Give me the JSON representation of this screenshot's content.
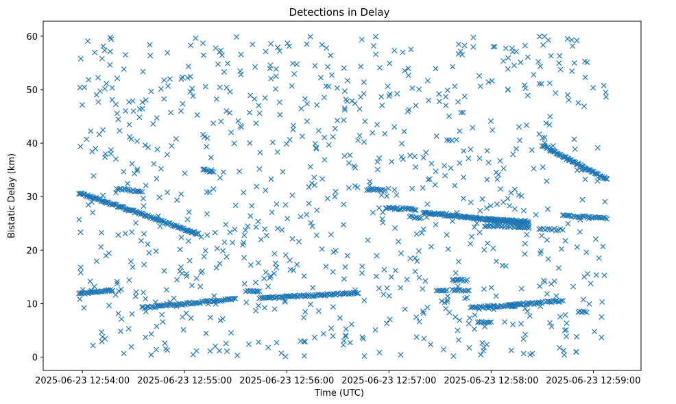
{
  "chart_data": {
    "type": "scatter",
    "title": "Detections in Delay",
    "xlabel": "Time (UTC)",
    "ylabel": "Bistatic Delay (km)",
    "marker": "x",
    "color": "#1f77b4",
    "x_unit": "seconds after 2025-06-23 12:54:00",
    "xlim": [
      -23,
      328
    ],
    "ylim": [
      -2.5,
      62.8
    ],
    "x_ticks": [
      {
        "value": 0,
        "label": "2025-06-23 12:54:00"
      },
      {
        "value": 60,
        "label": "2025-06-23 12:55:00"
      },
      {
        "value": 120,
        "label": "2025-06-23 12:56:00"
      },
      {
        "value": 180,
        "label": "2025-06-23 12:57:00"
      },
      {
        "value": 240,
        "label": "2025-06-23 12:58:00"
      },
      {
        "value": 300,
        "label": "2025-06-23 12:59:00"
      }
    ],
    "y_ticks": [
      {
        "value": 0,
        "label": "0"
      },
      {
        "value": 10,
        "label": "10"
      },
      {
        "value": 20,
        "label": "20"
      },
      {
        "value": 30,
        "label": "30"
      },
      {
        "value": 40,
        "label": "40"
      },
      {
        "value": 50,
        "label": "50"
      },
      {
        "value": 60,
        "label": "60"
      }
    ],
    "tracks": [
      {
        "x0": -2,
        "y0": 30.7,
        "x1": 37,
        "y1": 26.5,
        "n": 70
      },
      {
        "x0": 37,
        "y0": 26.5,
        "x1": 68,
        "y1": 23.0,
        "n": 55
      },
      {
        "x0": -2,
        "y0": 11.9,
        "x1": 18,
        "y1": 12.5,
        "n": 30
      },
      {
        "x0": 20,
        "y0": 31.4,
        "x1": 35,
        "y1": 31.0,
        "n": 18
      },
      {
        "x0": 35,
        "y0": 9.2,
        "x1": 90,
        "y1": 10.9,
        "n": 70
      },
      {
        "x0": 71,
        "y0": 35.0,
        "x1": 77,
        "y1": 34.6,
        "n": 8
      },
      {
        "x0": 96,
        "y0": 12.4,
        "x1": 104,
        "y1": 12.3,
        "n": 10
      },
      {
        "x0": 104,
        "y0": 11.0,
        "x1": 162,
        "y1": 12.0,
        "n": 80
      },
      {
        "x0": 167,
        "y0": 31.4,
        "x1": 178,
        "y1": 31.2,
        "n": 14
      },
      {
        "x0": 178,
        "y0": 27.9,
        "x1": 196,
        "y1": 27.6,
        "n": 24
      },
      {
        "x0": 192,
        "y0": 26.3,
        "x1": 199,
        "y1": 25.9,
        "n": 8
      },
      {
        "x0": 200,
        "y0": 27.0,
        "x1": 262,
        "y1": 25.0,
        "n": 110
      },
      {
        "x0": 236,
        "y0": 24.6,
        "x1": 262,
        "y1": 24.3,
        "n": 30
      },
      {
        "x0": 237,
        "y0": 25.7,
        "x1": 262,
        "y1": 25.4,
        "n": 30
      },
      {
        "x0": 217,
        "y0": 14.4,
        "x1": 226,
        "y1": 14.4,
        "n": 10
      },
      {
        "x0": 208,
        "y0": 12.4,
        "x1": 214,
        "y1": 12.5,
        "n": 8
      },
      {
        "x0": 217,
        "y0": 12.5,
        "x1": 227,
        "y1": 12.4,
        "n": 10
      },
      {
        "x0": 228,
        "y0": 9.3,
        "x1": 254,
        "y1": 9.6,
        "n": 35
      },
      {
        "x0": 232,
        "y0": 6.5,
        "x1": 240,
        "y1": 6.6,
        "n": 10
      },
      {
        "x0": 250,
        "y0": 9.7,
        "x1": 270,
        "y1": 10.2,
        "n": 30
      },
      {
        "x0": 272,
        "y0": 10.4,
        "x1": 282,
        "y1": 10.4,
        "n": 12
      },
      {
        "x0": 291,
        "y0": 8.5,
        "x1": 296,
        "y1": 8.4,
        "n": 6
      },
      {
        "x0": 270,
        "y0": 39.6,
        "x1": 308,
        "y1": 33.2,
        "n": 75
      },
      {
        "x0": 268,
        "y0": 23.9,
        "x1": 282,
        "y1": 23.8,
        "n": 12
      },
      {
        "x0": 282,
        "y0": 26.5,
        "x1": 308,
        "y1": 25.9,
        "n": 30
      }
    ],
    "scatter": {
      "count": 860,
      "x_range": [
        -2,
        308
      ],
      "y_range": [
        0,
        60
      ]
    }
  }
}
